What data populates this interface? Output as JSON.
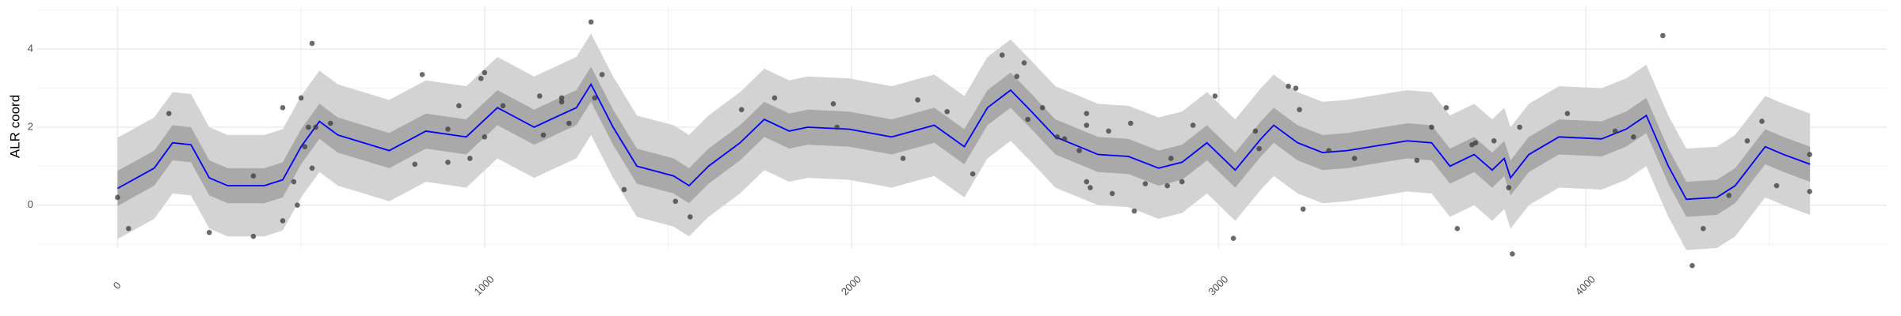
{
  "chart_data": {
    "type": "line",
    "y_label": "ALR coord",
    "xlim": [
      -221,
      4820
    ],
    "ylim": [
      -1.1,
      5.1
    ],
    "xticks": [
      0,
      1000,
      2000,
      3000,
      4000
    ],
    "yticks": [
      0,
      2,
      4
    ],
    "x_minor_ticks": [
      500,
      1500,
      2500,
      3500,
      4500
    ],
    "y_minor_ticks": [
      -1,
      1,
      3,
      5
    ],
    "grid": true,
    "x": [
      0,
      100,
      150,
      200,
      250,
      300,
      400,
      450,
      500,
      550,
      600,
      740,
      840,
      950,
      1035,
      1135,
      1215,
      1250,
      1290,
      1350,
      1415,
      1515,
      1557,
      1610,
      1696,
      1762,
      1830,
      1880,
      1993,
      2109,
      2225,
      2307,
      2370,
      2433,
      2490,
      2555,
      2620,
      2671,
      2754,
      2836,
      2900,
      2968,
      3045,
      3115,
      3150,
      3215,
      3283,
      3350,
      3448,
      3514,
      3580,
      3630,
      3696,
      3745,
      3778,
      3795,
      3845,
      3927,
      4043,
      4110,
      4165,
      4225,
      4274,
      4357,
      4407,
      4489,
      4539,
      4611
    ],
    "bands": [
      {
        "color": "#d3d3d3",
        "lower": [
          -0.87,
          -0.35,
          0.3,
          0.25,
          -0.6,
          -0.8,
          -0.8,
          -0.65,
          0.2,
          0.85,
          0.5,
          0.1,
          0.6,
          0.45,
          1.2,
          0.7,
          1.05,
          1.2,
          1.8,
          0.7,
          -0.3,
          -0.55,
          -0.8,
          -0.3,
          0.3,
          0.9,
          0.6,
          0.7,
          0.65,
          0.45,
          0.75,
          0.2,
          1.2,
          1.65,
          1.1,
          0.45,
          0.2,
          0.0,
          -0.05,
          -0.35,
          -0.2,
          0.3,
          -0.4,
          0.4,
          0.75,
          0.3,
          0.05,
          0.1,
          0.25,
          0.35,
          0.3,
          -0.3,
          0.0,
          -0.4,
          -0.1,
          -0.6,
          0.0,
          0.45,
          0.4,
          0.65,
          1.0,
          -0.3,
          -1.15,
          -1.1,
          -0.8,
          0.2,
          0.0,
          -0.25
        ],
        "upper": [
          1.73,
          2.25,
          2.9,
          2.85,
          2.0,
          1.8,
          1.8,
          1.95,
          2.8,
          3.45,
          3.1,
          2.7,
          3.2,
          3.05,
          3.8,
          3.3,
          3.65,
          3.8,
          4.4,
          3.3,
          2.3,
          2.05,
          1.8,
          2.3,
          2.9,
          3.5,
          3.2,
          3.3,
          3.25,
          3.05,
          3.35,
          2.8,
          3.8,
          4.25,
          3.7,
          3.05,
          2.8,
          2.6,
          2.55,
          2.25,
          2.4,
          2.9,
          2.2,
          3.0,
          3.35,
          2.9,
          2.65,
          2.7,
          2.85,
          2.95,
          2.9,
          2.3,
          2.6,
          2.2,
          2.5,
          2.0,
          2.6,
          3.05,
          3.0,
          3.25,
          3.6,
          2.3,
          1.45,
          1.5,
          1.8,
          2.8,
          2.6,
          2.35
        ]
      },
      {
        "color": "#a9a9a9",
        "lower": [
          -0.02,
          0.5,
          1.15,
          1.1,
          0.25,
          0.05,
          0.05,
          0.2,
          1.05,
          1.7,
          1.35,
          0.95,
          1.45,
          1.3,
          2.05,
          1.55,
          1.9,
          2.05,
          2.65,
          1.55,
          0.55,
          0.3,
          0.05,
          0.55,
          1.15,
          1.75,
          1.45,
          1.55,
          1.5,
          1.3,
          1.6,
          1.05,
          2.05,
          2.5,
          1.95,
          1.3,
          1.05,
          0.85,
          0.8,
          0.5,
          0.65,
          1.15,
          0.45,
          1.25,
          1.6,
          1.15,
          0.9,
          0.95,
          1.1,
          1.2,
          1.15,
          0.55,
          0.85,
          0.45,
          0.75,
          0.25,
          0.85,
          1.3,
          1.25,
          1.5,
          1.85,
          0.55,
          -0.3,
          -0.25,
          0.05,
          1.05,
          0.85,
          0.6
        ],
        "upper": [
          0.88,
          1.4,
          2.05,
          2.0,
          1.15,
          0.95,
          0.95,
          1.1,
          1.95,
          2.6,
          2.25,
          1.85,
          2.35,
          2.2,
          2.95,
          2.45,
          2.8,
          2.95,
          3.55,
          2.45,
          1.45,
          1.2,
          0.95,
          1.45,
          2.05,
          2.65,
          2.35,
          2.45,
          2.4,
          2.2,
          2.5,
          1.95,
          2.95,
          3.4,
          2.85,
          2.2,
          1.95,
          1.75,
          1.7,
          1.4,
          1.55,
          2.05,
          1.35,
          2.15,
          2.5,
          2.05,
          1.8,
          1.85,
          2.0,
          2.1,
          2.05,
          1.45,
          1.75,
          1.35,
          1.65,
          1.15,
          1.75,
          2.2,
          2.15,
          2.4,
          2.75,
          1.45,
          0.6,
          0.65,
          0.95,
          1.95,
          1.75,
          1.5
        ]
      }
    ],
    "line": {
      "color": "#0000ff",
      "values": [
        0.43,
        0.95,
        1.6,
        1.55,
        0.7,
        0.5,
        0.5,
        0.65,
        1.5,
        2.15,
        1.8,
        1.4,
        1.9,
        1.75,
        2.5,
        2.0,
        2.35,
        2.5,
        3.1,
        2.0,
        1.0,
        0.75,
        0.5,
        1.0,
        1.6,
        2.2,
        1.9,
        2.0,
        1.95,
        1.75,
        2.05,
        1.5,
        2.5,
        2.95,
        2.4,
        1.75,
        1.5,
        1.3,
        1.25,
        0.95,
        1.1,
        1.6,
        0.9,
        1.7,
        2.05,
        1.6,
        1.35,
        1.4,
        1.55,
        1.65,
        1.6,
        1.0,
        1.3,
        0.9,
        1.2,
        0.7,
        1.3,
        1.75,
        1.7,
        1.95,
        2.3,
        1.0,
        0.15,
        0.2,
        0.5,
        1.5,
        1.3,
        1.05
      ]
    },
    "points": {
      "color": "#3a3a3a",
      "x": [
        0,
        30,
        140,
        250,
        370,
        370,
        450,
        450,
        480,
        490,
        500,
        510,
        520,
        530,
        530,
        540,
        580,
        830,
        810,
        900,
        900,
        930,
        960,
        990,
        1000,
        1000,
        1050,
        1150,
        1160,
        1210,
        1210,
        1230,
        1290,
        1320,
        1300,
        1380,
        1520,
        1560,
        1700,
        1790,
        1950,
        1960,
        2140,
        2180,
        2260,
        2330,
        2410,
        2450,
        2470,
        2480,
        2520,
        2560,
        2580,
        2620,
        2640,
        2640,
        2650,
        2640,
        2700,
        2710,
        2760,
        2770,
        2800,
        2860,
        2870,
        2900,
        2930,
        2990,
        3040,
        3100,
        3110,
        3190,
        3210,
        3220,
        3230,
        3300,
        3370,
        3540,
        3580,
        3620,
        3650,
        3690,
        3700,
        3750,
        3790,
        3800,
        3820,
        3950,
        4080,
        4130,
        4210,
        4290,
        4320,
        4390,
        4440,
        4480,
        4520,
        4610,
        4610
      ],
      "y": [
        0.2,
        -0.6,
        2.35,
        -0.7,
        0.75,
        -0.8,
        2.5,
        -0.4,
        0.6,
        0,
        2.75,
        1.5,
        2.0,
        4.15,
        0.95,
        2.0,
        2.1,
        3.35,
        1.05,
        1.95,
        1.1,
        2.55,
        1.2,
        3.25,
        3.4,
        1.75,
        2.55,
        2.8,
        1.8,
        2.75,
        2.65,
        2.1,
        4.7,
        3.35,
        2.75,
        0.4,
        0.1,
        -0.3,
        2.45,
        2.75,
        2.6,
        2.0,
        1.2,
        2.7,
        2.4,
        0.8,
        3.85,
        3.3,
        3.65,
        2.2,
        2.5,
        1.75,
        1.7,
        1.4,
        2.35,
        0.6,
        0.45,
        2.05,
        1.9,
        0.3,
        2.1,
        -0.15,
        0.55,
        0.5,
        1.2,
        0.6,
        2.05,
        2.8,
        -0.85,
        1.9,
        1.45,
        3.05,
        3.0,
        2.45,
        -0.1,
        1.4,
        1.2,
        1.15,
        2.0,
        2.5,
        -0.6,
        1.55,
        1.6,
        1.65,
        0.45,
        -1.25,
        2.0,
        2.35,
        1.9,
        1.75,
        4.35,
        -1.55,
        -0.6,
        0.25,
        1.65,
        2.15,
        0.5,
        1.3,
        0.35
      ]
    }
  }
}
